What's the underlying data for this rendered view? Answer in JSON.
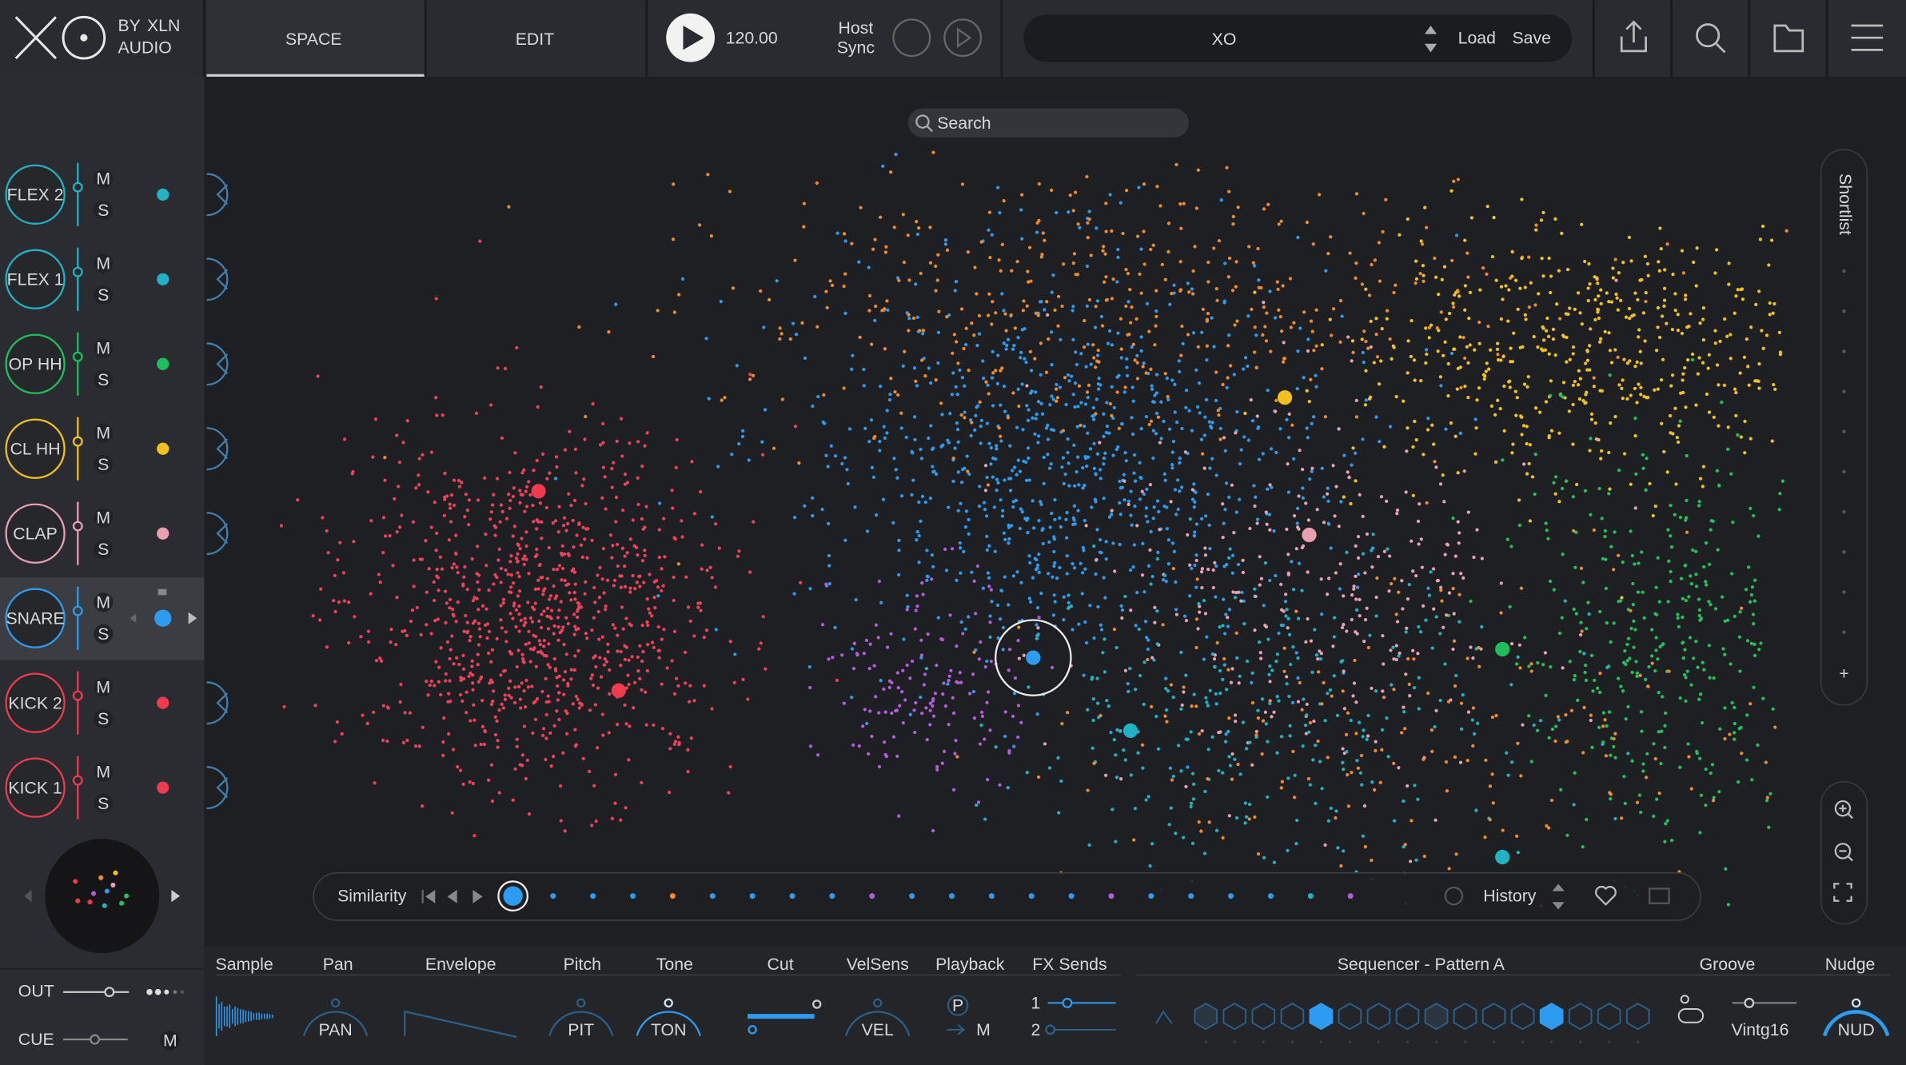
{
  "header": {
    "by": "BY",
    "brand": "XLN",
    "brand2": "AUDIO",
    "tabs": [
      "SPACE",
      "EDIT"
    ],
    "tempo": "120.00",
    "host": "Host",
    "sync": "Sync",
    "preset": "XO",
    "load": "Load",
    "save": "Save"
  },
  "space": {
    "search": "Search",
    "shortlist": "Shortlist",
    "add": "+",
    "similarity": "Similarity",
    "history": "History"
  },
  "channels": [
    {
      "name": "FLEX 2",
      "color": "#1fb3c4",
      "mute": "M",
      "solo": "S"
    },
    {
      "name": "FLEX 1",
      "color": "#1fb3c4",
      "mute": "M",
      "solo": "S"
    },
    {
      "name": "OP HH",
      "color": "#1dbf5a",
      "mute": "M",
      "solo": "S"
    },
    {
      "name": "CL HH",
      "color": "#f2c11b",
      "mute": "M",
      "solo": "S"
    },
    {
      "name": "CLAP",
      "color": "#e8a0b0",
      "mute": "M",
      "solo": "S"
    },
    {
      "name": "SNARE",
      "color": "#2d9bf0",
      "mute": "M",
      "solo": "S"
    },
    {
      "name": "KICK 2",
      "color": "#f03a4e",
      "mute": "M",
      "solo": "S"
    },
    {
      "name": "KICK 1",
      "color": "#f03a4e",
      "mute": "M",
      "solo": "S"
    }
  ],
  "output": {
    "out": "OUT",
    "cue": "CUE",
    "mute": "M"
  },
  "bottom": {
    "sections": [
      "Sample",
      "Pan",
      "Envelope",
      "Pitch",
      "Tone",
      "Cut",
      "VelSens",
      "Playback",
      "FX Sends",
      "Sequencer - Pattern A",
      "Groove",
      "Nudge"
    ],
    "knobs": {
      "pan": "PAN",
      "pitch": "PIT",
      "tone": "TON",
      "vel": "VEL",
      "nudge": "NUD",
      "groove": "Vintg16",
      "send1": "1",
      "send2": "2",
      "playback_p": "P",
      "playback_m": "M"
    }
  }
}
